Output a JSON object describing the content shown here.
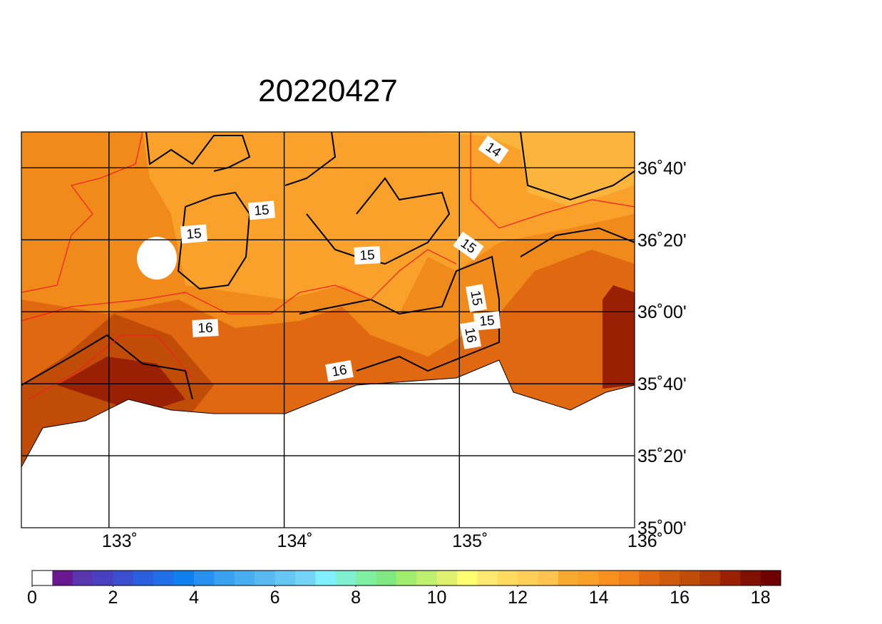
{
  "chart_data": {
    "type": "map",
    "title": "20220427",
    "xlim": [
      132.5,
      136
    ],
    "ylim": [
      35,
      36.833
    ],
    "xticks": [
      {
        "value": 133,
        "label": "133˚"
      },
      {
        "value": 134,
        "label": "134˚"
      },
      {
        "value": 135,
        "label": "135˚"
      },
      {
        "value": 136,
        "label": "136˚"
      }
    ],
    "yticks": [
      {
        "value": 35,
        "label": "35˚00'"
      },
      {
        "value": 35.3333,
        "label": "35˚20'"
      },
      {
        "value": 35.6667,
        "label": "35˚40'"
      },
      {
        "value": 36,
        "label": "36˚00'"
      },
      {
        "value": 36.3333,
        "label": "36˚20'"
      },
      {
        "value": 36.6667,
        "label": "36˚40'"
      }
    ],
    "contour_labels": [
      "14",
      "15",
      "15",
      "15",
      "15",
      "15",
      "15",
      "16",
      "16",
      "16"
    ],
    "colorbar": {
      "lim": [
        0,
        18.5
      ],
      "ticks": [
        0,
        2,
        4,
        6,
        8,
        10,
        12,
        14,
        16,
        18
      ],
      "colors": [
        "#ffffff",
        "#6a1890",
        "#5a35b0",
        "#4a3fc0",
        "#3a4fd0",
        "#2a5fe0",
        "#1f6fe8",
        "#1080f0",
        "#2890f0",
        "#3aa0f0",
        "#48aef0",
        "#58baf0",
        "#66c6f4",
        "#74d4f8",
        "#80f0ff",
        "#80f0d0",
        "#80f0a0",
        "#80e880",
        "#a0ee70",
        "#c0f070",
        "#e0f070",
        "#ffff70",
        "#ffe870",
        "#ffdc60",
        "#ffd058",
        "#ffc450",
        "#f8aa30",
        "#f8a028",
        "#f89020",
        "#f08018",
        "#e06810",
        "#d05a0c",
        "#c04c08",
        "#b03a06",
        "#9a2004",
        "#801000",
        "#700000"
      ]
    }
  }
}
